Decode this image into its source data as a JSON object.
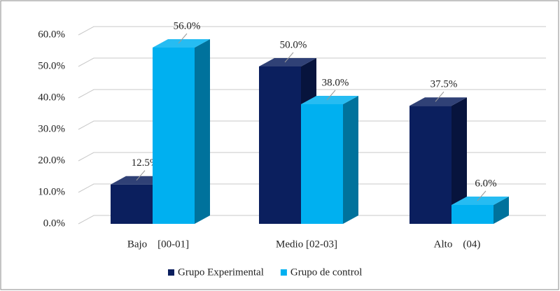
{
  "chart_data": {
    "type": "bar3d",
    "categories": [
      "Bajo    [00-01]",
      "Medio [02-03]",
      "Alto    (04)"
    ],
    "series": [
      {
        "name": "Grupo Experimental",
        "color": "#0b1f5e",
        "values": [
          12.5,
          50.0,
          37.5
        ],
        "value_labels": [
          "12.5%",
          "50.0%",
          "37.5%"
        ]
      },
      {
        "name": "Grupo de control",
        "color": "#00b0f0",
        "values": [
          56.0,
          38.0,
          6.0
        ],
        "value_labels": [
          "56.0%",
          "38.0%",
          "6.0%"
        ]
      }
    ],
    "ylim": [
      0,
      60
    ],
    "yticks": [
      {
        "value": 0,
        "label": "0.0%"
      },
      {
        "value": 10,
        "label": "10.0%"
      },
      {
        "value": 20,
        "label": "20.0%"
      },
      {
        "value": 30,
        "label": "30.0%"
      },
      {
        "value": 40,
        "label": "40.0%"
      },
      {
        "value": 50,
        "label": "50.0%"
      },
      {
        "value": 60,
        "label": "60.0%"
      }
    ],
    "grid": true,
    "legend": "bottom"
  }
}
